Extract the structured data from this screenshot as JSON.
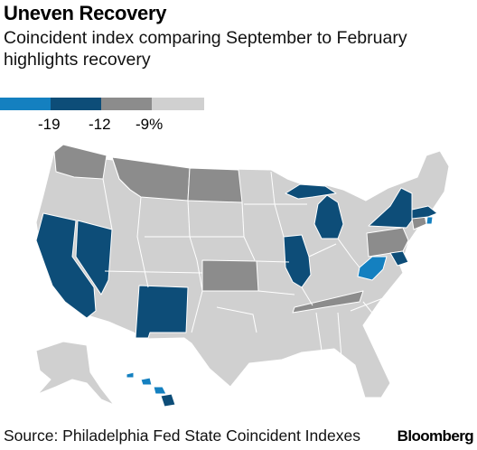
{
  "title": "Uneven Recovery",
  "subtitle": "Coincident index comparing September to February highlights recovery",
  "legend": {
    "bins": [
      {
        "color": "#1480c0"
      },
      {
        "color": "#0d4d78"
      },
      {
        "color": "#8c8c8c"
      },
      {
        "color": "#d0d0d0"
      }
    ],
    "labels": [
      "-19",
      "-12",
      "-9%"
    ]
  },
  "colors": {
    "bin1": "#1480c0",
    "bin2": "#0d4d78",
    "bin3": "#8c8c8c",
    "bin4": "#d0d0d0"
  },
  "states": {
    "bin1": [
      "West Virginia",
      "Hawaii",
      "Rhode Island"
    ],
    "bin2": [
      "California",
      "Nevada",
      "New Mexico",
      "Illinois",
      "Michigan",
      "New York",
      "Massachusetts",
      "Maryland"
    ],
    "bin3": [
      "Washington",
      "Montana",
      "North Dakota",
      "Kansas",
      "Tennessee",
      "Pennsylvania",
      "Connecticut"
    ],
    "bin4": [
      "other states"
    ]
  },
  "source": "Source: Philadelphia Fed State Coincident Indexes",
  "brand": "Bloomberg"
}
